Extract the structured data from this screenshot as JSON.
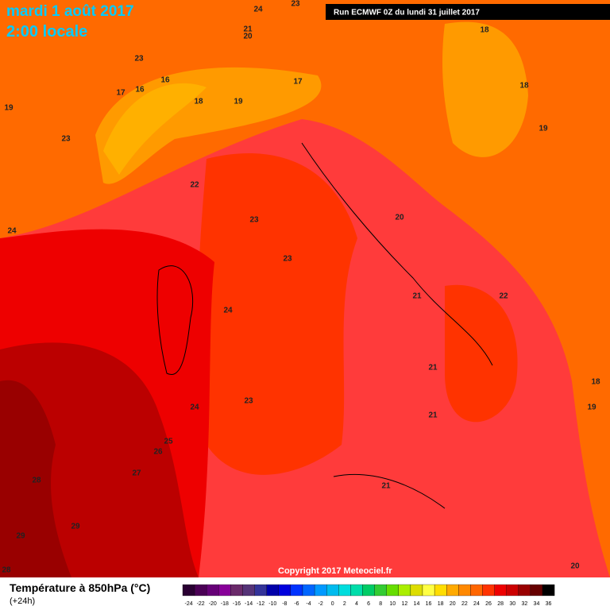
{
  "header": {
    "date": "mardi 1 août 2017",
    "time": "2:00 locale",
    "run": "Run ECMWF 0Z du lundi 31 juillet 2017"
  },
  "map": {
    "contour_labels": [
      24,
      23,
      21,
      20,
      18,
      23,
      16,
      17,
      16,
      18,
      19,
      17,
      18,
      19,
      23,
      19,
      22,
      20,
      23,
      24,
      23,
      24,
      21,
      22,
      21,
      18,
      23,
      24,
      19,
      21,
      25,
      26,
      27,
      28,
      21,
      29,
      29,
      20,
      28
    ],
    "copyright": "Copyright 2017 Meteociel.fr"
  },
  "legend": {
    "title": "Température à 850hPa (°C)",
    "lead": "(+24h)",
    "ticks": [
      -24,
      -22,
      -20,
      -18,
      -16,
      -14,
      -12,
      -10,
      -8,
      -6,
      -4,
      -2,
      0,
      2,
      4,
      6,
      8,
      10,
      12,
      14,
      16,
      18,
      20,
      22,
      24,
      26,
      28,
      30,
      32,
      34,
      36
    ]
  }
}
